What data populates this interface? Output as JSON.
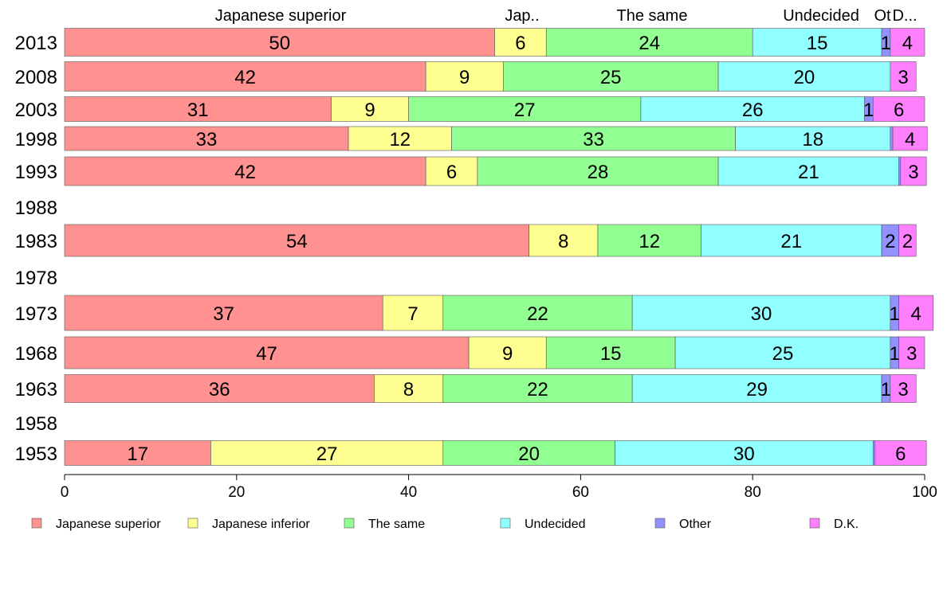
{
  "chart_data": {
    "type": "bar",
    "orientation": "horizontal",
    "stacked": true,
    "xlim": [
      0,
      100
    ],
    "x_ticks": [
      0,
      20,
      40,
      60,
      80,
      100
    ],
    "categories": [
      "2013",
      "2008",
      "2003",
      "1998",
      "1993",
      "1988",
      "1983",
      "1978",
      "1973",
      "1968",
      "1963",
      "1958",
      "1953"
    ],
    "series": [
      {
        "name": "Japanese superior",
        "color": "#ff9191",
        "values": [
          50,
          42,
          31,
          33,
          42,
          null,
          54,
          null,
          37,
          47,
          36,
          null,
          17
        ]
      },
      {
        "name": "Japanese inferior",
        "color": "#ffff91",
        "values": [
          6,
          9,
          9,
          12,
          6,
          null,
          8,
          null,
          7,
          9,
          8,
          null,
          27
        ]
      },
      {
        "name": "The same",
        "color": "#91ff91",
        "values": [
          24,
          25,
          27,
          33,
          28,
          null,
          12,
          null,
          22,
          15,
          22,
          null,
          20
        ]
      },
      {
        "name": "Undecided",
        "color": "#91ffff",
        "values": [
          15,
          20,
          26,
          18,
          21,
          null,
          21,
          null,
          30,
          25,
          29,
          null,
          30
        ]
      },
      {
        "name": "Other",
        "color": "#9191ff",
        "values": [
          1,
          0,
          1,
          0.3,
          0.2,
          null,
          2,
          null,
          1,
          1,
          1,
          null,
          0.2
        ]
      },
      {
        "name": "D.K.",
        "color": "#ff80ff",
        "values": [
          4,
          3,
          6,
          4,
          3,
          null,
          2,
          null,
          4,
          3,
          3,
          null,
          6
        ]
      }
    ],
    "segment_labels": [
      [
        "50",
        "6",
        "24",
        "15",
        "1",
        "4"
      ],
      [
        "42",
        "9",
        "25",
        "20",
        "",
        "3"
      ],
      [
        "31",
        "9",
        "27",
        "26",
        "1",
        "6"
      ],
      [
        "33",
        "12",
        "33",
        "18",
        "",
        "4"
      ],
      [
        "42",
        "6",
        "28",
        "21",
        "",
        "3"
      ],
      [],
      [
        "54",
        "8",
        "12",
        "21",
        "2",
        "2"
      ],
      [],
      [
        "37",
        "7",
        "22",
        "30",
        "1",
        "4"
      ],
      [
        "47",
        "9",
        "15",
        "25",
        "1",
        "3"
      ],
      [
        "36",
        "8",
        "22",
        "29",
        "1",
        "3"
      ],
      [],
      [
        "17",
        "27",
        "20",
        "30",
        "",
        "6"
      ]
    ],
    "top_labels": [
      "Japanese superior",
      "Jap..",
      "The same",
      "Undecided",
      "Ot",
      "D..."
    ],
    "legend_position": "bottom",
    "grid": false
  }
}
